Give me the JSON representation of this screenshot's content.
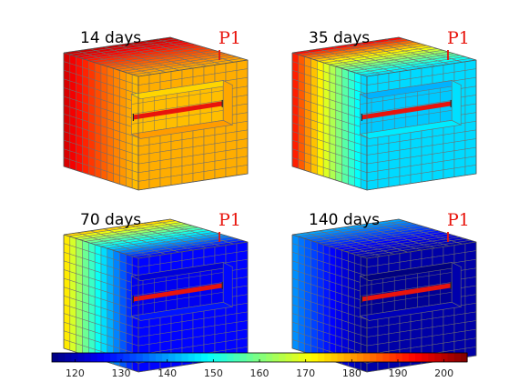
{
  "panels": [
    {
      "time_label": "14 days",
      "well_label": "P1",
      "left_value": 200,
      "right_value": 178
    },
    {
      "time_label": "35 days",
      "well_label": "P1",
      "left_value": 196,
      "right_value": 145
    },
    {
      "time_label": "70 days",
      "well_label": "P1",
      "left_value": 178,
      "right_value": 126
    },
    {
      "time_label": "140 days",
      "well_label": "P1",
      "left_value": 142,
      "right_value": 118
    }
  ],
  "colorbar": {
    "min": 115,
    "max": 205,
    "tick_labels": [
      "120",
      "130",
      "140",
      "150",
      "160",
      "170",
      "180",
      "190",
      "200"
    ],
    "colormap": "jet"
  },
  "colors": {
    "grid_line": "#6e6e6e",
    "fracture": "#e8140c",
    "well_marker": "#e8140c",
    "block_outline": "#555555"
  }
}
